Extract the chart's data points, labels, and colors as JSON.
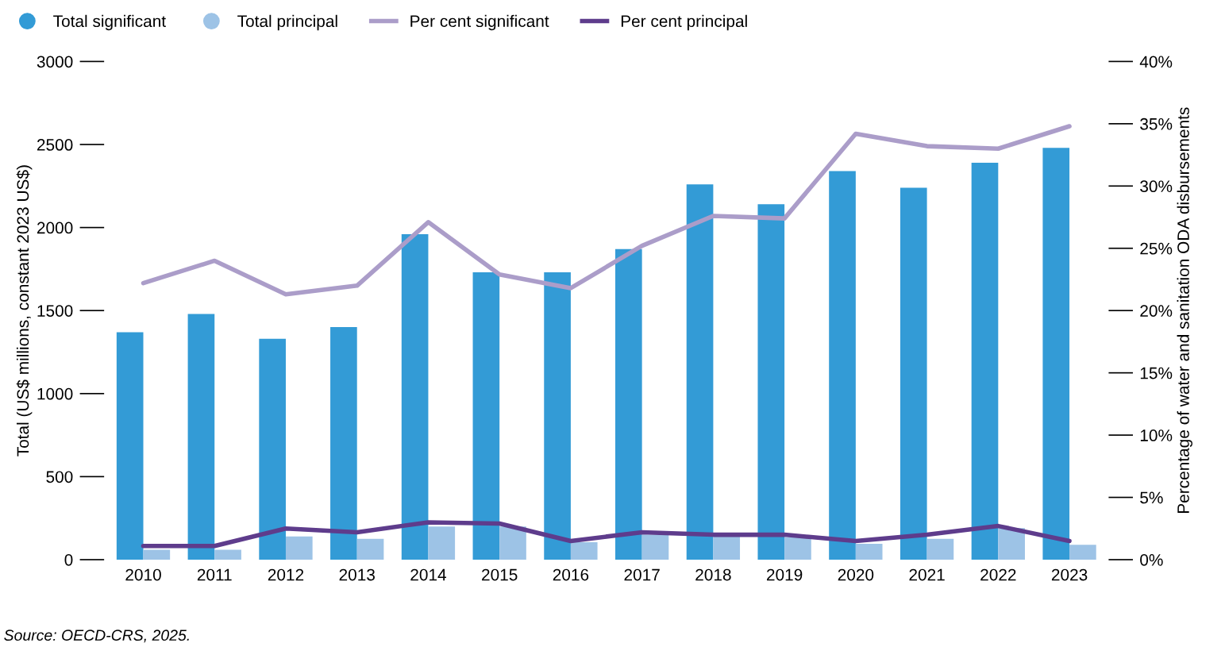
{
  "chart_data": {
    "type": "bar",
    "categories": [
      "2010",
      "2011",
      "2012",
      "2013",
      "2014",
      "2015",
      "2016",
      "2017",
      "2018",
      "2019",
      "2020",
      "2021",
      "2022",
      "2023"
    ],
    "series": [
      {
        "name": "Total significant",
        "color": "#339bd6",
        "values": [
          1370,
          1480,
          1330,
          1400,
          1960,
          1730,
          1730,
          1870,
          2260,
          2140,
          2340,
          2240,
          2390,
          2480
        ]
      },
      {
        "name": "Total principal",
        "color": "#9dc3e6",
        "values": [
          60,
          60,
          140,
          125,
          200,
          200,
          105,
          150,
          145,
          135,
          95,
          125,
          190,
          90
        ]
      },
      {
        "name": "Per cent significant",
        "type": "line",
        "axis": "y2",
        "color": "#ab9dc9",
        "values": [
          22.2,
          24.0,
          21.3,
          22.0,
          27.1,
          22.9,
          21.8,
          25.2,
          27.6,
          27.4,
          34.2,
          33.2,
          33.0,
          34.8
        ]
      },
      {
        "name": "Per cent principal",
        "type": "line",
        "axis": "y2",
        "color": "#5e3c8c",
        "values": [
          1.1,
          1.1,
          2.5,
          2.2,
          3.0,
          2.9,
          1.5,
          2.2,
          2.0,
          2.0,
          1.5,
          2.0,
          2.7,
          1.5
        ]
      }
    ],
    "ylabel": "Total (US$ millions, constant 2023 US$)",
    "y2label": "Percentage of water and sanitation ODA disbursements",
    "ylim": [
      0,
      3000
    ],
    "yticks": [
      0,
      500,
      1000,
      1500,
      2000,
      2500,
      3000
    ],
    "y2lim": [
      0,
      40
    ],
    "y2ticks": [
      {
        "value": 0,
        "label": "0%"
      },
      {
        "value": 5,
        "label": "5%"
      },
      {
        "value": 10,
        "label": "10%"
      },
      {
        "value": 15,
        "label": "15%"
      },
      {
        "value": 20,
        "label": "20%"
      },
      {
        "value": 25,
        "label": "25%"
      },
      {
        "value": 30,
        "label": "30%"
      },
      {
        "value": 35,
        "label": "35%"
      },
      {
        "value": 40,
        "label": "40%"
      }
    ],
    "annotations": [
      "Source: OECD-CRS, 2025."
    ],
    "legend": "top left",
    "grid": false,
    "marker": "none",
    "line_style": "solid"
  }
}
